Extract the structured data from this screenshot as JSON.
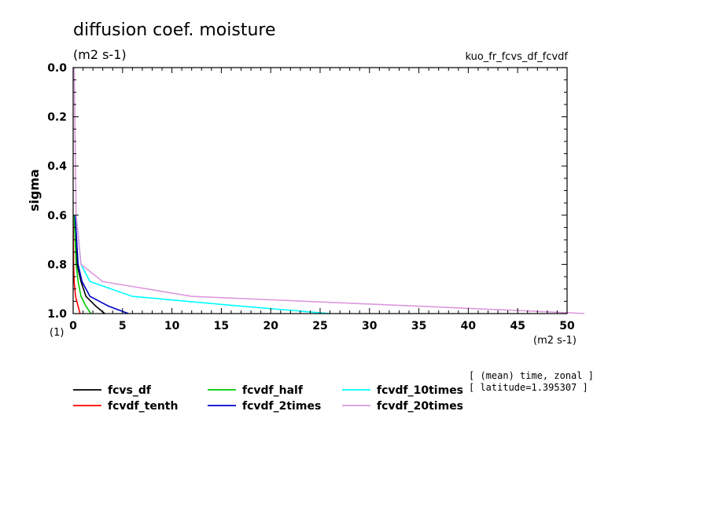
{
  "chart_data": {
    "type": "line",
    "title": "diffusion coef. moisture",
    "title_units": "(m2 s-1)",
    "run_label": "kuo_fr_fcvs_df_fcvdf",
    "xlabel_units": "(m2 s-1)",
    "ylabel": "sigma",
    "y_sublabel": "(1)",
    "xlim": [
      0,
      50
    ],
    "ylim": [
      0.0,
      1.0
    ],
    "y_inverted": true,
    "x_ticks": [
      0,
      5,
      10,
      15,
      20,
      25,
      30,
      35,
      40,
      45,
      50
    ],
    "y_ticks": [
      0.0,
      0.2,
      0.4,
      0.6,
      0.8,
      1.0
    ],
    "x_tick_labels": [
      "0",
      "5",
      "10",
      "15",
      "20",
      "25",
      "30",
      "35",
      "40",
      "45",
      "50"
    ],
    "y_tick_labels": [
      "0.0",
      "0.2",
      "0.4",
      "0.6",
      "0.8",
      "1.0"
    ],
    "legend_position": "below",
    "annotations": [
      "[ (mean) time, zonal ]",
      "[ latitude=1.395307 ]"
    ],
    "series": [
      {
        "name": "fcvs_df",
        "color": "#000000",
        "points": [
          [
            0.2,
            0.6
          ],
          [
            0.4,
            0.8
          ],
          [
            0.8,
            0.87
          ],
          [
            1.3,
            0.93
          ],
          [
            2.3,
            0.97
          ],
          [
            3.2,
            1.0
          ]
        ]
      },
      {
        "name": "fcvdf_tenth",
        "color": "#ff0000",
        "points": [
          [
            0.0,
            0.6
          ],
          [
            0.05,
            0.8
          ],
          [
            0.1,
            0.87
          ],
          [
            0.25,
            0.93
          ],
          [
            0.5,
            0.97
          ],
          [
            0.7,
            1.0
          ]
        ]
      },
      {
        "name": "fcvdf_half",
        "color": "#00cc00",
        "points": [
          [
            0.1,
            0.6
          ],
          [
            0.3,
            0.8
          ],
          [
            0.5,
            0.87
          ],
          [
            0.8,
            0.93
          ],
          [
            1.3,
            0.97
          ],
          [
            1.8,
            1.0
          ]
        ]
      },
      {
        "name": "fcvdf_2times",
        "color": "#0000cc",
        "points": [
          [
            0.2,
            0.6
          ],
          [
            0.5,
            0.8
          ],
          [
            0.9,
            0.87
          ],
          [
            1.7,
            0.93
          ],
          [
            3.6,
            0.97
          ],
          [
            5.6,
            1.0
          ]
        ]
      },
      {
        "name": "fcvdf_10times",
        "color": "#00ffff",
        "points": [
          [
            0.3,
            0.6
          ],
          [
            0.8,
            0.8
          ],
          [
            1.7,
            0.87
          ],
          [
            6.0,
            0.93
          ],
          [
            17.0,
            0.97
          ],
          [
            26.0,
            1.0
          ]
        ]
      },
      {
        "name": "fcvdf_20times",
        "color": "#dd99dd",
        "points": [
          [
            0.1,
            0.0
          ],
          [
            0.3,
            0.6
          ],
          [
            0.8,
            0.8
          ],
          [
            3.0,
            0.87
          ],
          [
            12.0,
            0.93
          ],
          [
            35.0,
            0.97
          ],
          [
            52.0,
            1.0
          ]
        ]
      }
    ]
  }
}
